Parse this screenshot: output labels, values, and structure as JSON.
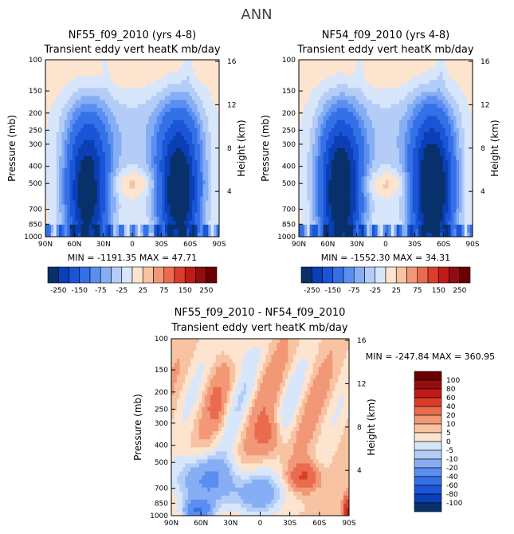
{
  "figure_title": "ANN",
  "colors": {
    "neg": [
      "#08306b",
      "#0a3fb5",
      "#1a55d8",
      "#3470e6",
      "#5a8ef0",
      "#86aef4",
      "#b4cdf7",
      "#d8e6fb"
    ],
    "zero": "#ffffff",
    "pos": [
      "#fde4cf",
      "#f7c3a2",
      "#f29877",
      "#ea6b4e",
      "#dc3d2b",
      "#c01b17",
      "#920d0f",
      "#6b0000"
    ],
    "axis": "#000000"
  },
  "chart_data": [
    {
      "type": "contour",
      "title": "NF55_f09_2010 (yrs 4-8)",
      "subtitle": "Transient eddy vert heatK mb/day",
      "ylabel": "Pressure (mb)",
      "y2label": "Height (km)",
      "xticks": [
        "90N",
        "60N",
        "30N",
        "0",
        "30S",
        "60S",
        "90S"
      ],
      "yticks": [
        "100",
        "150",
        "200",
        "250",
        "300",
        "400",
        "500",
        "700",
        "850",
        "1000"
      ],
      "y2ticks": [
        "16",
        "12",
        "8",
        "4"
      ],
      "stats": "MIN = -1191.35   MAX = 47.71",
      "colorbar_labels": [
        "-250",
        "-150",
        "-75",
        "-25",
        "25",
        "75",
        "150",
        "250"
      ],
      "field": "model_a"
    },
    {
      "type": "contour",
      "title": "NF54_f09_2010 (yrs 4-8)",
      "subtitle": "Transient eddy vert heatK mb/day",
      "ylabel": "Pressure (mb)",
      "y2label": "Height (km)",
      "xticks": [
        "90N",
        "60N",
        "30N",
        "0",
        "30S",
        "60S",
        "90S"
      ],
      "yticks": [
        "100",
        "150",
        "200",
        "250",
        "300",
        "400",
        "500",
        "700",
        "850",
        "1000"
      ],
      "y2ticks": [
        "16",
        "12",
        "8",
        "4"
      ],
      "stats": "MIN = -1552.30   MAX = 34.31",
      "colorbar_labels": [
        "-250",
        "-150",
        "-75",
        "-25",
        "25",
        "75",
        "150",
        "250"
      ],
      "field": "model_b"
    },
    {
      "type": "contour",
      "title": "NF55_f09_2010 - NF54_f09_2010",
      "subtitle": "Transient eddy vert heatK mb/day",
      "ylabel": "Pressure (mb)",
      "y2label": "Height (km)",
      "xticks": [
        "90N",
        "60N",
        "30N",
        "0",
        "30S",
        "60S",
        "90S"
      ],
      "yticks": [
        "100",
        "150",
        "200",
        "250",
        "300",
        "400",
        "500",
        "700",
        "850",
        "1000"
      ],
      "y2ticks": [
        "16",
        "12",
        "8",
        "4"
      ],
      "stats": "MIN = -247.84   MAX = 360.95",
      "colorbar_labels": [
        "100",
        "80",
        "60",
        "40",
        "20",
        "10",
        "5",
        "0",
        "-5",
        "-10",
        "-20",
        "-40",
        "-60",
        "-80",
        "-100"
      ],
      "field": "difference"
    }
  ]
}
